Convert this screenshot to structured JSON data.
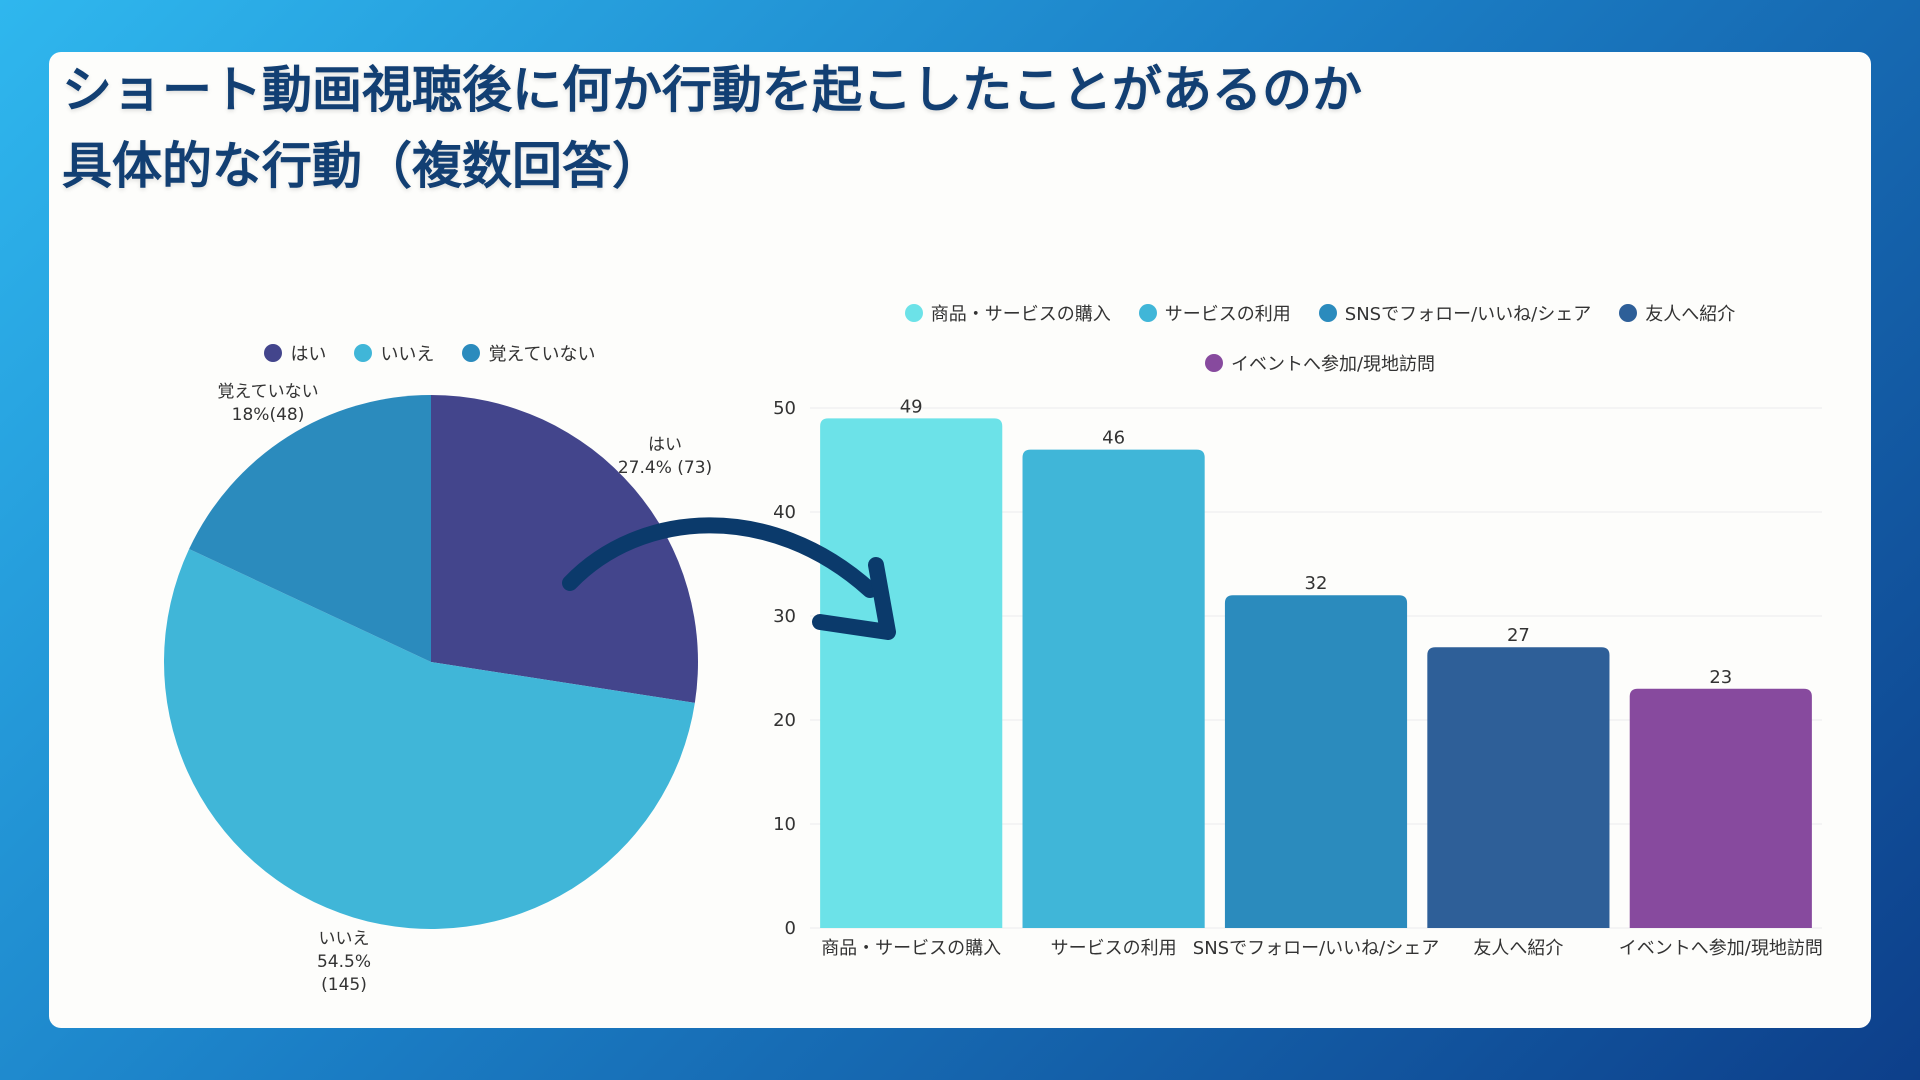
{
  "title": {
    "line1": "ショート動画視聴後に何か行動を起こしたことがあるのか",
    "line2": "具体的な行動（複数回答）"
  },
  "colors": {
    "card_background": "#fdfdfb",
    "title": "#123f73",
    "arrow": "#0b3a6b"
  },
  "chart_data": [
    {
      "type": "pie",
      "legend": [
        "はい",
        "いいえ",
        "覚えていない"
      ],
      "slices": [
        {
          "label": "はい",
          "percent": 27.4,
          "count": 73,
          "color": "#43458c",
          "label_line1": "はい",
          "label_line2": "27.4% (73)",
          "label_line3": ""
        },
        {
          "label": "いいえ",
          "percent": 54.5,
          "count": 145,
          "color": "#40b6d8",
          "label_line1": "いいえ",
          "label_line2": "54.5%",
          "label_line3": "(145)"
        },
        {
          "label": "覚えていない",
          "percent": 18,
          "count": 48,
          "color": "#2b8bbd",
          "label_line1": "覚えていない",
          "label_line2": "18%(48)",
          "label_line3": ""
        }
      ]
    },
    {
      "type": "bar",
      "legend": [
        "商品・サービスの購入",
        "サービスの利用",
        "SNSでフォロー/いいね/シェア",
        "友人へ紹介",
        "イベントへ参加/現地訪問"
      ],
      "categories": [
        "商品・サービスの購入",
        "サービスの利用",
        "SNSでフォロー/いいね/シェア",
        "友人へ紹介",
        "イベントへ参加/現地訪問"
      ],
      "values": [
        49,
        46,
        32,
        27,
        23
      ],
      "colors": [
        "#6ce2e8",
        "#40b6d8",
        "#2b8bbd",
        "#2e5f98",
        "#874a9e"
      ],
      "yticks": [
        "0",
        "10",
        "20",
        "30",
        "40",
        "50"
      ],
      "ylim": [
        0,
        50
      ],
      "xlabel": "",
      "ylabel": ""
    }
  ]
}
